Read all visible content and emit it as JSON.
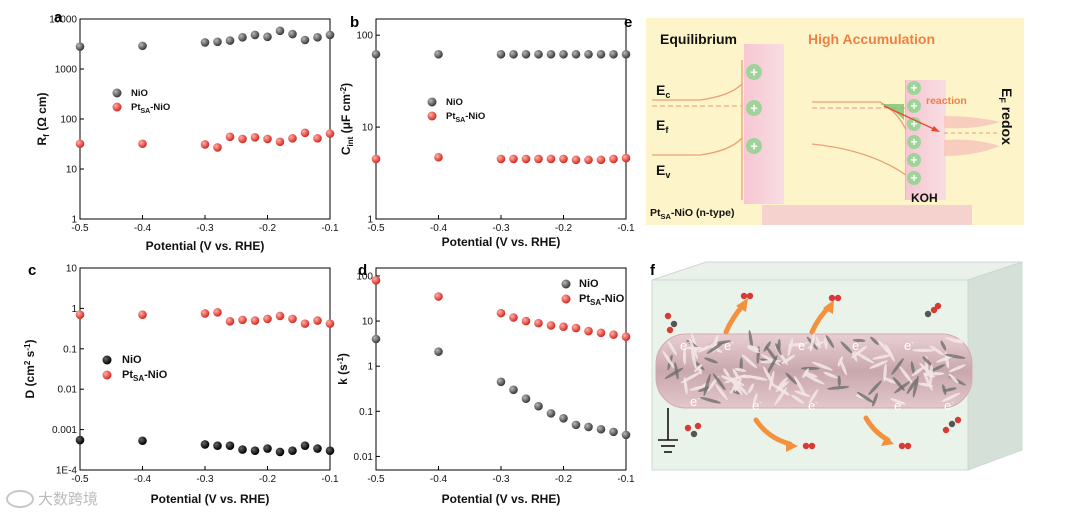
{
  "chart_data": [
    {
      "id": "a",
      "type": "scatter",
      "scale": "log",
      "xlabel": "Potential (V vs. RHE)",
      "ylabel": "R_f (Ω cm)",
      "xlim": [
        -0.5,
        -0.1
      ],
      "ylim": [
        1,
        10000
      ],
      "xticks": [
        "-0.5",
        "-0.4",
        "-0.3",
        "-0.2",
        "-0.1"
      ],
      "yticks": [
        {
          "v": 1,
          "t": "1"
        },
        {
          "v": 10,
          "t": "10"
        },
        {
          "v": 100,
          "t": "100"
        },
        {
          "v": 1000,
          "t": "1000"
        },
        {
          "v": 10000,
          "t": "10000"
        }
      ],
      "series": [
        {
          "name": "NiO",
          "color": "#4a4a4a",
          "x": [
            -0.5,
            -0.4,
            -0.3,
            -0.28,
            -0.26,
            -0.24,
            -0.22,
            -0.2,
            -0.18,
            -0.16,
            -0.14,
            -0.12,
            -0.1
          ],
          "y": [
            2800,
            2900,
            3400,
            3500,
            3700,
            4300,
            4800,
            4400,
            5800,
            5000,
            3800,
            4300,
            4800
          ]
        },
        {
          "name": "Pt_SA-NiO",
          "color": "#e0403a",
          "x": [
            -0.5,
            -0.4,
            -0.3,
            -0.28,
            -0.26,
            -0.24,
            -0.22,
            -0.2,
            -0.18,
            -0.16,
            -0.14,
            -0.12,
            -0.1
          ],
          "y": [
            32,
            32,
            31,
            27,
            44,
            40,
            43,
            40,
            35,
            41,
            53,
            41,
            51
          ]
        }
      ]
    },
    {
      "id": "b",
      "type": "scatter",
      "scale": "log",
      "xlabel": "Potential (V vs. RHE)",
      "ylabel": "C_int (μF cm⁻²)",
      "xlim": [
        -0.5,
        -0.1
      ],
      "ylim": [
        1,
        150
      ],
      "xticks": [
        "-0.5",
        "-0.4",
        "-0.3",
        "-0.2",
        "-0.1"
      ],
      "yticks": [
        {
          "v": 1,
          "t": "1"
        },
        {
          "v": 10,
          "t": "10"
        },
        {
          "v": 100,
          "t": "100"
        }
      ],
      "series": [
        {
          "name": "NiO",
          "color": "#4a4a4a",
          "x": [
            -0.5,
            -0.4,
            -0.3,
            -0.28,
            -0.26,
            -0.24,
            -0.22,
            -0.2,
            -0.18,
            -0.16,
            -0.14,
            -0.12,
            -0.1
          ],
          "y": [
            62,
            62,
            62,
            62,
            62,
            62,
            62,
            62,
            62,
            62,
            62,
            62,
            62
          ]
        },
        {
          "name": "Pt_SA-NiO",
          "color": "#e0403a",
          "x": [
            -0.5,
            -0.4,
            -0.3,
            -0.28,
            -0.26,
            -0.24,
            -0.22,
            -0.2,
            -0.18,
            -0.16,
            -0.14,
            -0.12,
            -0.1
          ],
          "y": [
            4.5,
            4.7,
            4.5,
            4.5,
            4.5,
            4.5,
            4.5,
            4.5,
            4.4,
            4.4,
            4.4,
            4.5,
            4.6
          ]
        }
      ]
    },
    {
      "id": "c",
      "type": "scatter",
      "scale": "log",
      "xlabel": "Potential (V vs. RHE)",
      "ylabel": "D (cm² s⁻¹)",
      "xlim": [
        -0.5,
        -0.1
      ],
      "ylim": [
        0.0001,
        10
      ],
      "xticks": [
        "-0.5",
        "-0.4",
        "-0.3",
        "-0.2",
        "-0.1"
      ],
      "yticks": [
        {
          "v": 0.0001,
          "t": "1E-4"
        },
        {
          "v": 0.001,
          "t": "0.001"
        },
        {
          "v": 0.01,
          "t": "0.01"
        },
        {
          "v": 0.1,
          "t": "0.1"
        },
        {
          "v": 1,
          "t": "1"
        },
        {
          "v": 10,
          "t": "10"
        }
      ],
      "series": [
        {
          "name": "NiO",
          "color": "#111111",
          "x": [
            -0.5,
            -0.4,
            -0.3,
            -0.28,
            -0.26,
            -0.24,
            -0.22,
            -0.2,
            -0.18,
            -0.16,
            -0.14,
            -0.12,
            -0.1
          ],
          "y": [
            0.00055,
            0.00053,
            0.00043,
            0.0004,
            0.0004,
            0.00032,
            0.0003,
            0.00034,
            0.00028,
            0.0003,
            0.0004,
            0.00034,
            0.0003
          ]
        },
        {
          "name": "Pt_SA-NiO",
          "color": "#e0403a",
          "x": [
            -0.5,
            -0.4,
            -0.3,
            -0.28,
            -0.26,
            -0.24,
            -0.22,
            -0.2,
            -0.18,
            -0.16,
            -0.14,
            -0.12,
            -0.1
          ],
          "y": [
            0.7,
            0.7,
            0.75,
            0.8,
            0.48,
            0.52,
            0.5,
            0.55,
            0.65,
            0.55,
            0.42,
            0.5,
            0.42
          ]
        }
      ]
    },
    {
      "id": "d",
      "type": "scatter",
      "scale": "log",
      "xlabel": "Potential (V vs. RHE)",
      "ylabel": "k (s⁻¹)",
      "xlim": [
        -0.5,
        -0.1
      ],
      "ylim": [
        0.005,
        150
      ],
      "xticks": [
        "-0.5",
        "-0.4",
        "-0.3",
        "-0.2",
        "-0.1"
      ],
      "yticks": [
        {
          "v": 0.01,
          "t": "0.01"
        },
        {
          "v": 0.1,
          "t": "0.1"
        },
        {
          "v": 1,
          "t": "1"
        },
        {
          "v": 10,
          "t": "10"
        },
        {
          "v": 100,
          "t": "100"
        }
      ],
      "series": [
        {
          "name": "NiO",
          "color": "#4a4a4a",
          "x": [
            -0.5,
            -0.4,
            -0.3,
            -0.28,
            -0.26,
            -0.24,
            -0.22,
            -0.2,
            -0.18,
            -0.16,
            -0.14,
            -0.12,
            -0.1
          ],
          "y": [
            4,
            2.1,
            0.45,
            0.3,
            0.19,
            0.13,
            0.09,
            0.07,
            0.05,
            0.045,
            0.04,
            0.035,
            0.03
          ]
        },
        {
          "name": "Pt_SA-NiO",
          "color": "#e0403a",
          "x": [
            -0.5,
            -0.4,
            -0.3,
            -0.28,
            -0.26,
            -0.24,
            -0.22,
            -0.2,
            -0.18,
            -0.16,
            -0.14,
            -0.12,
            -0.1
          ],
          "y": [
            80,
            35,
            15,
            12,
            10,
            9,
            8,
            7.5,
            7,
            6,
            5.5,
            5,
            4.5
          ]
        }
      ]
    }
  ],
  "panels": {
    "a": {
      "label": "a",
      "legend": [
        "NiO",
        "Pt"
      ]
    },
    "b": {
      "label": "b"
    },
    "c": {
      "label": "c"
    },
    "d": {
      "label": "d"
    }
  },
  "axis_text": {
    "xlabel": "Potential (V vs. RHE)",
    "a_ylabel_main": "R",
    "a_ylabel_sub": "f",
    "a_ylabel_rest": " (Ω cm)",
    "b_ylabel_main": "C",
    "b_ylabel_sub": "int",
    "b_ylabel_rest": " (μF cm",
    "b_ylabel_sup": "-2",
    "b_ylabel_end": ")",
    "c_ylabel_main": "D (cm",
    "c_ylabel_sup1": "2",
    "c_ylabel_mid": " s",
    "c_ylabel_sup2": "-1",
    "c_ylabel_end": ")",
    "d_ylabel_main": "k (s",
    "d_ylabel_sup": "-1",
    "d_ylabel_end": ")"
  },
  "legend_text": {
    "nio": "NiO",
    "pt_main": "Pt",
    "pt_sub": "SA",
    "pt_rest": "-NiO"
  },
  "panel_e": {
    "label": "e",
    "equilibrium": "Equilibrium",
    "high_accumulation": "High Accumulation",
    "ec_main": "E",
    "ec_sub": "c",
    "ef_main": "E",
    "ef_sub": "f",
    "ev_main": "E",
    "ev_sub": "v",
    "reaction": "reaction",
    "koh": "KOH",
    "sample_main": "Pt",
    "sample_sub": "SA",
    "sample_rest": "-NiO (n-type)",
    "redox_main": "E",
    "redox_sub": "F",
    "redox_rest": " redox",
    "plus": "+"
  },
  "panel_f": {
    "label": "f",
    "electron": "e",
    "electron_sup": "-"
  },
  "watermark": "大数跨境",
  "colors": {
    "nio": "#4a4a4a",
    "pt": "#e0403a",
    "e_bg": "#fdf5c9",
    "orange": "#f08a4a"
  }
}
